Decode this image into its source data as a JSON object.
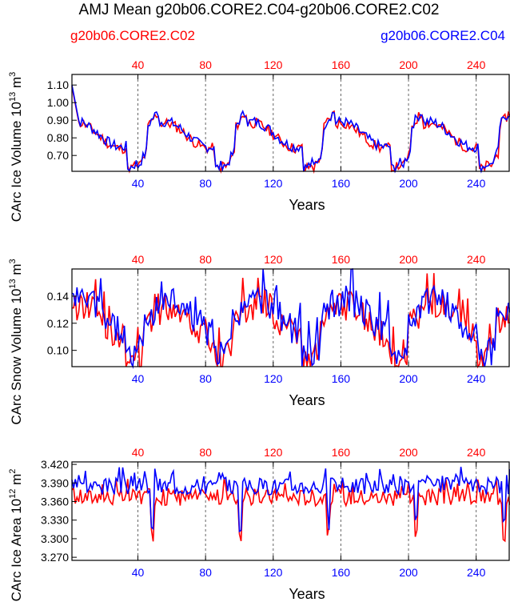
{
  "figure": {
    "title": "AMJ Mean g20b06.CORE2.C04-g20b06.CORE2.C02",
    "legend_left": "g20b06.CORE2.C02",
    "legend_right": "g20b06.CORE2.C04"
  },
  "colors": {
    "series_c02": "#ff0000",
    "series_c04": "#0000ff",
    "axis": "#000000",
    "grid": "#666666"
  },
  "chart_data": [
    {
      "type": "line",
      "name": "ice-volume",
      "ylabel_main": "CArc Ice Volume 10",
      "ylabel_exp": "13",
      "ylabel_unit": " m",
      "ylabel_unit_exp": "3",
      "xlabel": "Years",
      "xlim": [
        1,
        260
      ],
      "ylim": [
        0.61,
        1.16
      ],
      "x_ticks": [
        40,
        80,
        120,
        160,
        200,
        240
      ],
      "y_ticks": [
        0.7,
        0.8,
        0.9,
        1.0,
        1.1
      ],
      "y_tick_labels": [
        "0.70",
        "0.80",
        "0.90",
        "1.00",
        "1.10"
      ],
      "vertical_gridlines": [
        40,
        80,
        120,
        160,
        200,
        240
      ],
      "series": [
        {
          "name": "g20b06.CORE2.C02",
          "color": "#ff0000",
          "generator": {
            "kind": "ice",
            "offset": -0.008,
            "seed": 11
          }
        },
        {
          "name": "g20b06.CORE2.C04",
          "color": "#0000ff",
          "generator": {
            "kind": "ice",
            "offset": 0.0,
            "seed": 7
          }
        }
      ]
    },
    {
      "type": "line",
      "name": "snow-volume",
      "ylabel_main": "CArc Snow Volume 10",
      "ylabel_exp": "13",
      "ylabel_unit": " m",
      "ylabel_unit_exp": "3",
      "xlabel": "Years",
      "xlim": [
        1,
        260
      ],
      "ylim": [
        0.088,
        0.16
      ],
      "x_ticks": [
        40,
        80,
        120,
        160,
        200,
        240
      ],
      "y_ticks": [
        0.1,
        0.12,
        0.14
      ],
      "y_tick_labels": [
        "0.10",
        "0.12",
        "0.14"
      ],
      "vertical_gridlines": [
        40,
        80,
        120,
        160,
        200,
        240
      ],
      "series": [
        {
          "name": "g20b06.CORE2.C02",
          "color": "#ff0000",
          "generator": {
            "kind": "snow",
            "offset": -0.004,
            "seed": 13
          }
        },
        {
          "name": "g20b06.CORE2.C04",
          "color": "#0000ff",
          "generator": {
            "kind": "snow",
            "offset": 0.0,
            "seed": 5
          }
        }
      ]
    },
    {
      "type": "line",
      "name": "ice-area",
      "ylabel_main": "CArc Ice Area 10",
      "ylabel_exp": "12",
      "ylabel_unit": " m",
      "ylabel_unit_exp": "2",
      "xlabel": "Years",
      "xlim": [
        1,
        260
      ],
      "ylim": [
        3.265,
        3.424
      ],
      "x_ticks": [
        40,
        80,
        120,
        160,
        200,
        240
      ],
      "y_ticks": [
        3.27,
        3.3,
        3.33,
        3.36,
        3.39,
        3.42
      ],
      "y_tick_labels": [
        "3.270",
        "3.300",
        "3.330",
        "3.360",
        "3.390",
        "3.420"
      ],
      "vertical_gridlines": [
        40,
        80,
        120,
        160,
        200,
        240
      ],
      "series": [
        {
          "name": "g20b06.CORE2.C02",
          "color": "#ff0000",
          "generator": {
            "kind": "area",
            "offset": -0.018,
            "seed": 17
          }
        },
        {
          "name": "g20b06.CORE2.C04",
          "color": "#0000ff",
          "generator": {
            "kind": "area",
            "offset": 0.0,
            "seed": 3
          }
        }
      ]
    }
  ]
}
